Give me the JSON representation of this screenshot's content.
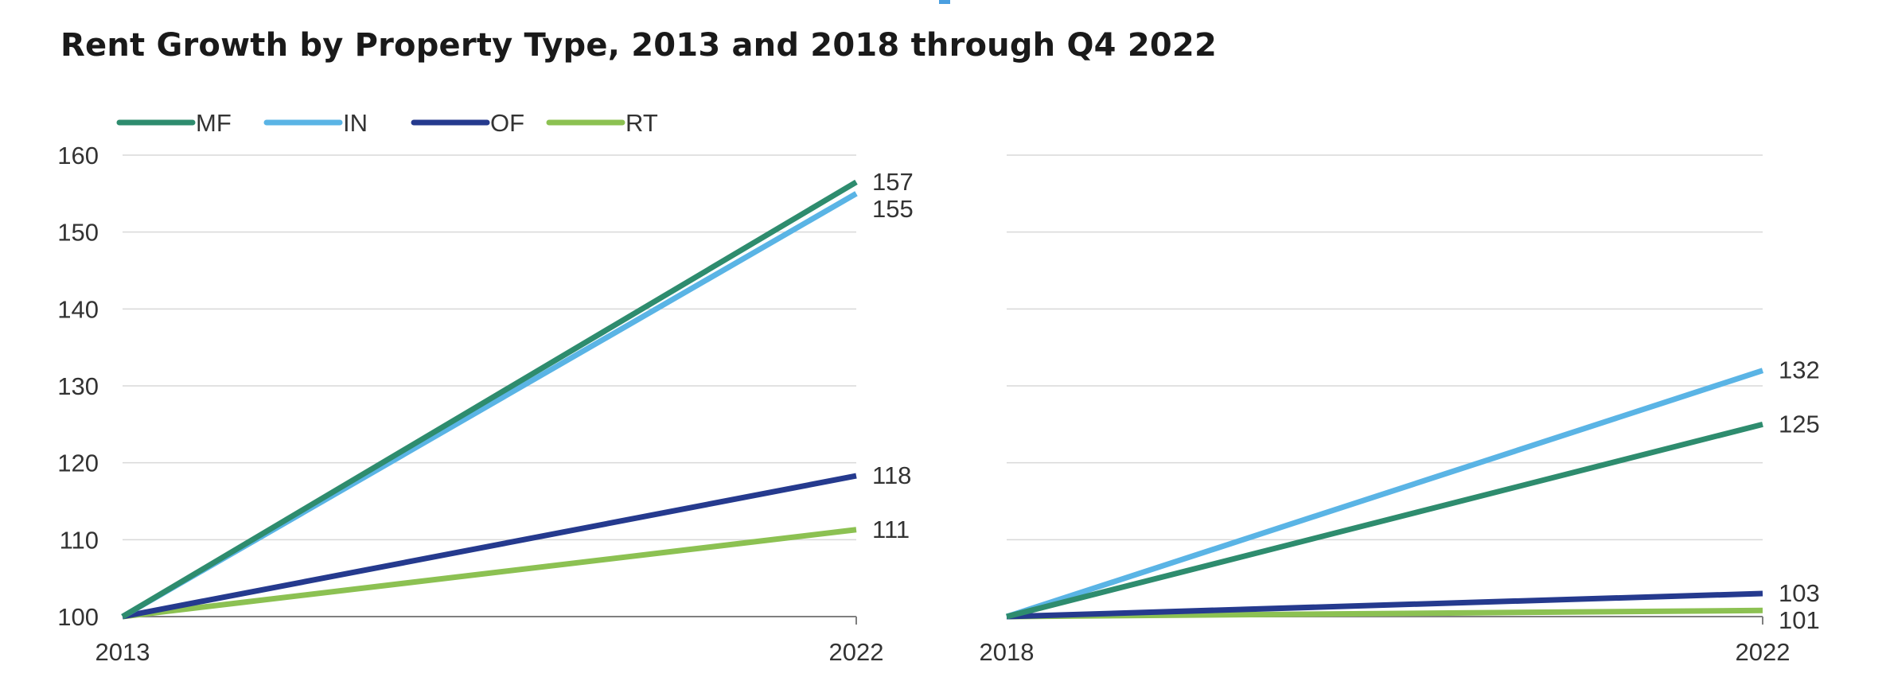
{
  "title": "Rent Growth by Property Type, 2013 and 2018 through Q4 2022",
  "legend": [
    {
      "name": "MF",
      "color": "#2e8c6e"
    },
    {
      "name": "IN",
      "color": "#5ab4e5"
    },
    {
      "name": "OF",
      "color": "#253a8e"
    },
    {
      "name": "RT",
      "color": "#8cc152"
    }
  ],
  "chart_data": [
    {
      "type": "line",
      "x": [
        "2013",
        "2022"
      ],
      "ylim": [
        100,
        160
      ],
      "yticks": [
        100,
        110,
        120,
        130,
        140,
        150,
        160
      ],
      "grid": true,
      "legend_position": "top-left",
      "series": [
        {
          "name": "MF",
          "color": "#2e8c6e",
          "values": [
            100,
            156.5
          ],
          "end_label": "157"
        },
        {
          "name": "IN",
          "color": "#5ab4e5",
          "values": [
            100,
            155
          ],
          "end_label": "155"
        },
        {
          "name": "OF",
          "color": "#253a8e",
          "values": [
            100,
            118.3
          ],
          "end_label": "118"
        },
        {
          "name": "RT",
          "color": "#8cc152",
          "values": [
            100,
            111.3
          ],
          "end_label": "111"
        }
      ]
    },
    {
      "type": "line",
      "x": [
        "2018",
        "2022"
      ],
      "ylim": [
        100,
        160
      ],
      "grid": true,
      "series": [
        {
          "name": "MF",
          "color": "#2e8c6e",
          "values": [
            100,
            125
          ],
          "end_label": "125"
        },
        {
          "name": "IN",
          "color": "#5ab4e5",
          "values": [
            100,
            132
          ],
          "end_label": "132"
        },
        {
          "name": "OF",
          "color": "#253a8e",
          "values": [
            100,
            103
          ],
          "end_label": "103"
        },
        {
          "name": "RT",
          "color": "#8cc152",
          "values": [
            100,
            100.8
          ],
          "end_label": "101"
        }
      ]
    }
  ]
}
